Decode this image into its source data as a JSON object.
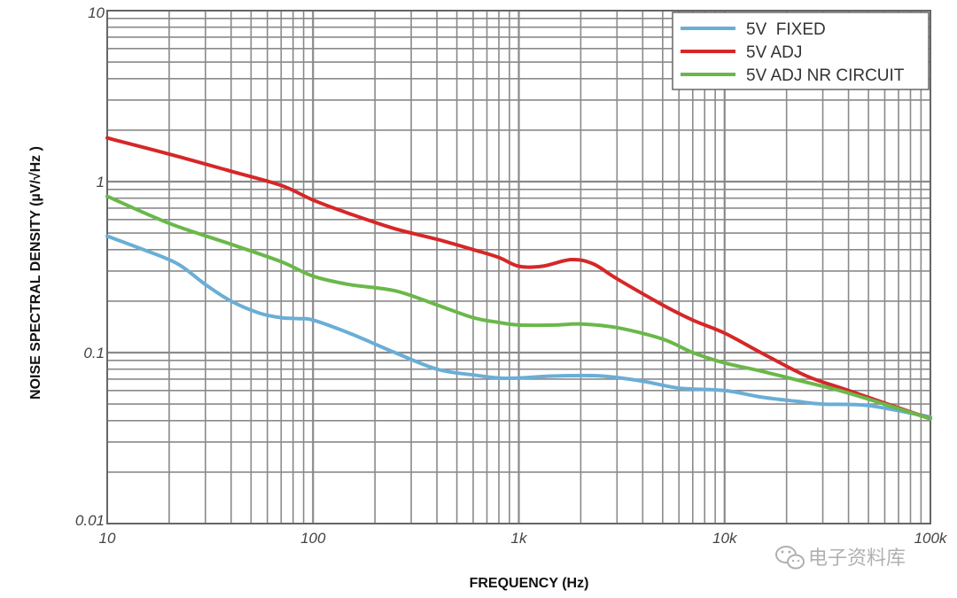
{
  "chart_data": {
    "type": "line",
    "title": "",
    "xlabel": "FREQUENCY (Hz)",
    "ylabel": "NOISE SPECTRAL DENSITY (µV/√Hz )",
    "xscale": "log",
    "yscale": "log",
    "xlim": [
      10,
      100000
    ],
    "ylim": [
      0.01,
      10
    ],
    "grid": true,
    "legend_position": "top-right",
    "x_tick_labels": [
      {
        "value": 10,
        "label": "10"
      },
      {
        "value": 100,
        "label": "100"
      },
      {
        "value": 1000,
        "label": "1k"
      },
      {
        "value": 10000,
        "label": "10k"
      },
      {
        "value": 100000,
        "label": "100k"
      }
    ],
    "y_tick_labels": [
      {
        "value": 10,
        "label": "10"
      },
      {
        "value": 1,
        "label": "1"
      },
      {
        "value": 0.1,
        "label": "0.1"
      },
      {
        "value": 0.01,
        "label": "0.01"
      }
    ],
    "series": [
      {
        "name": "5V  FIXED",
        "color": "#6aaed6",
        "x": [
          10,
          15,
          22,
          30,
          40,
          55,
          70,
          85,
          100,
          150,
          250,
          400,
          600,
          800,
          1000,
          1500,
          2500,
          4000,
          6000,
          10000,
          15000,
          22000,
          30000,
          50000,
          100000
        ],
        "y": [
          0.48,
          0.4,
          0.33,
          0.25,
          0.2,
          0.17,
          0.16,
          0.158,
          0.155,
          0.13,
          0.1,
          0.08,
          0.074,
          0.071,
          0.071,
          0.073,
          0.073,
          0.068,
          0.062,
          0.06,
          0.055,
          0.052,
          0.05,
          0.049,
          0.042
        ]
      },
      {
        "name": "5V ADJ",
        "color": "#d62728",
        "x": [
          10,
          20,
          40,
          70,
          100,
          150,
          250,
          400,
          600,
          800,
          1000,
          1300,
          1800,
          2300,
          3000,
          5000,
          7000,
          10000,
          15000,
          25000,
          40000,
          100000
        ],
        "y": [
          1.8,
          1.45,
          1.15,
          0.95,
          0.78,
          0.65,
          0.53,
          0.46,
          0.4,
          0.36,
          0.32,
          0.32,
          0.35,
          0.33,
          0.27,
          0.19,
          0.155,
          0.13,
          0.1,
          0.073,
          0.06,
          0.041
        ]
      },
      {
        "name": "5V ADJ NR CIRCUIT",
        "color": "#6ab84a",
        "x": [
          10,
          20,
          40,
          70,
          100,
          150,
          250,
          400,
          600,
          800,
          1000,
          1500,
          2000,
          3000,
          5000,
          7000,
          10000,
          15000,
          25000,
          40000,
          100000
        ],
        "y": [
          0.82,
          0.57,
          0.43,
          0.34,
          0.28,
          0.25,
          0.23,
          0.19,
          0.16,
          0.15,
          0.145,
          0.145,
          0.147,
          0.14,
          0.12,
          0.1,
          0.087,
          0.078,
          0.067,
          0.058,
          0.041
        ]
      }
    ]
  },
  "watermark": {
    "icon": "wechat-icon",
    "text": "电子资料库"
  }
}
